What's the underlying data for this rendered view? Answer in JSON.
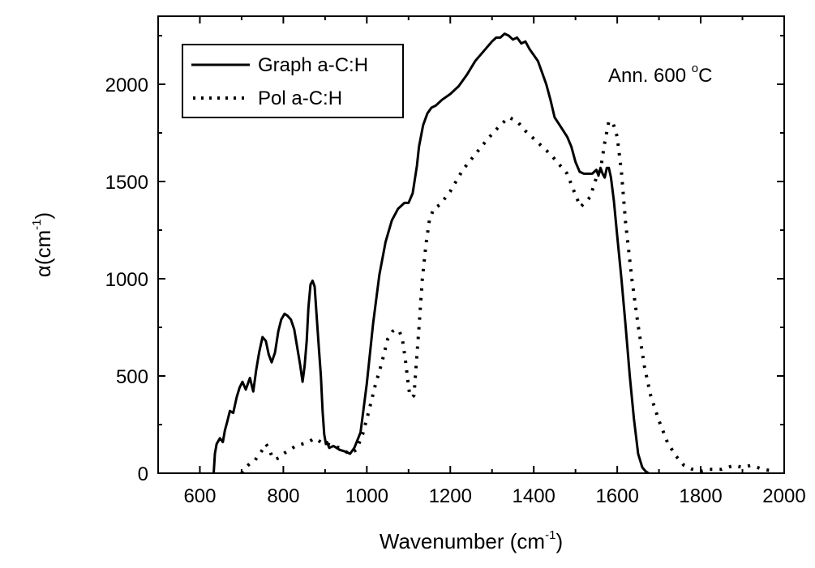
{
  "chart_data": {
    "type": "line",
    "xlabel": "Wavenumber (cm",
    "xlabel_sup": "-1",
    "xlabel_tail": ")",
    "ylabel": "α(cm",
    "ylabel_sup": "-1",
    "ylabel_tail": ")",
    "xlim": [
      500,
      2000
    ],
    "ylim": [
      0,
      2350
    ],
    "xticks": [
      600,
      800,
      1000,
      1200,
      1400,
      1600,
      1800,
      2000
    ],
    "yticks": [
      0,
      500,
      1000,
      1500,
      2000
    ],
    "grid": false,
    "legend_position": "top-left",
    "annotation": {
      "text": "Ann. 600 ",
      "sup": "o",
      "tail": "C"
    },
    "series": [
      {
        "name": "Graph a-C:H",
        "style": "solid",
        "color": "#000000",
        "x": [
          633,
          636,
          640,
          648,
          655,
          660,
          665,
          672,
          680,
          688,
          695,
          702,
          710,
          720,
          728,
          735,
          742,
          750,
          758,
          765,
          772,
          780,
          788,
          795,
          803,
          810,
          818,
          826,
          833,
          840,
          846,
          851,
          856,
          860,
          865,
          870,
          875,
          880,
          885,
          890,
          894,
          898,
          902,
          905,
          910,
          920,
          935,
          950,
          960,
          970,
          985,
          1000,
          1015,
          1030,
          1045,
          1060,
          1075,
          1090,
          1100,
          1110,
          1120,
          1125,
          1135,
          1145,
          1155,
          1165,
          1180,
          1200,
          1220,
          1240,
          1260,
          1280,
          1300,
          1310,
          1320,
          1330,
          1340,
          1350,
          1360,
          1370,
          1380,
          1390,
          1400,
          1410,
          1420,
          1430,
          1440,
          1450,
          1465,
          1480,
          1490,
          1500,
          1510,
          1520,
          1530,
          1540,
          1550,
          1555,
          1560,
          1565,
          1570,
          1575,
          1580,
          1585,
          1592,
          1600,
          1610,
          1620,
          1630,
          1640,
          1650,
          1660,
          1668,
          1675
        ],
        "y": [
          0,
          100,
          150,
          180,
          160,
          220,
          260,
          320,
          310,
          390,
          440,
          470,
          430,
          490,
          420,
          530,
          620,
          700,
          680,
          610,
          570,
          620,
          730,
          790,
          820,
          810,
          790,
          740,
          650,
          560,
          470,
          550,
          680,
          850,
          970,
          990,
          960,
          800,
          650,
          500,
          320,
          200,
          150,
          160,
          130,
          140,
          120,
          110,
          100,
          130,
          210,
          460,
          770,
          1020,
          1190,
          1300,
          1360,
          1390,
          1390,
          1440,
          1580,
          1680,
          1790,
          1850,
          1880,
          1890,
          1920,
          1950,
          1990,
          2050,
          2120,
          2170,
          2220,
          2240,
          2240,
          2260,
          2250,
          2230,
          2240,
          2210,
          2220,
          2180,
          2150,
          2120,
          2060,
          2000,
          1920,
          1830,
          1780,
          1730,
          1680,
          1600,
          1550,
          1540,
          1540,
          1540,
          1560,
          1530,
          1570,
          1540,
          1520,
          1570,
          1570,
          1520,
          1400,
          1220,
          1000,
          760,
          500,
          280,
          100,
          30,
          10,
          0
        ]
      },
      {
        "name": "Pol a-C:H",
        "style": "dotted",
        "color": "#000000",
        "x": [
          700,
          710,
          720,
          730,
          740,
          750,
          758,
          765,
          772,
          780,
          790,
          800,
          815,
          830,
          845,
          860,
          875,
          890,
          905,
          920,
          935,
          950,
          960,
          975,
          990,
          1005,
          1020,
          1035,
          1050,
          1062,
          1070,
          1078,
          1085,
          1092,
          1098,
          1103,
          1108,
          1113,
          1118,
          1125,
          1133,
          1142,
          1150,
          1160,
          1175,
          1200,
          1230,
          1260,
          1290,
          1320,
          1340,
          1360,
          1380,
          1400,
          1420,
          1440,
          1460,
          1480,
          1500,
          1512,
          1522,
          1535,
          1550,
          1560,
          1570,
          1580,
          1590,
          1600,
          1610,
          1620,
          1635,
          1650,
          1665,
          1680,
          1700,
          1720,
          1740,
          1760,
          1780,
          1800,
          1820,
          1850,
          1880,
          1900,
          1920,
          1950,
          1975
        ],
        "y": [
          0,
          30,
          50,
          60,
          90,
          120,
          150,
          130,
          90,
          70,
          80,
          100,
          120,
          140,
          150,
          160,
          180,
          160,
          150,
          140,
          130,
          110,
          100,
          120,
          200,
          320,
          450,
          560,
          690,
          730,
          740,
          730,
          690,
          590,
          480,
          400,
          390,
          400,
          550,
          750,
          1000,
          1180,
          1300,
          1360,
          1380,
          1450,
          1560,
          1640,
          1720,
          1790,
          1830,
          1810,
          1760,
          1720,
          1680,
          1640,
          1590,
          1540,
          1430,
          1370,
          1390,
          1420,
          1520,
          1560,
          1700,
          1810,
          1800,
          1730,
          1550,
          1290,
          1000,
          760,
          550,
          400,
          270,
          160,
          90,
          40,
          20,
          10,
          20,
          20,
          40,
          30,
          40,
          20,
          10
        ]
      }
    ]
  }
}
